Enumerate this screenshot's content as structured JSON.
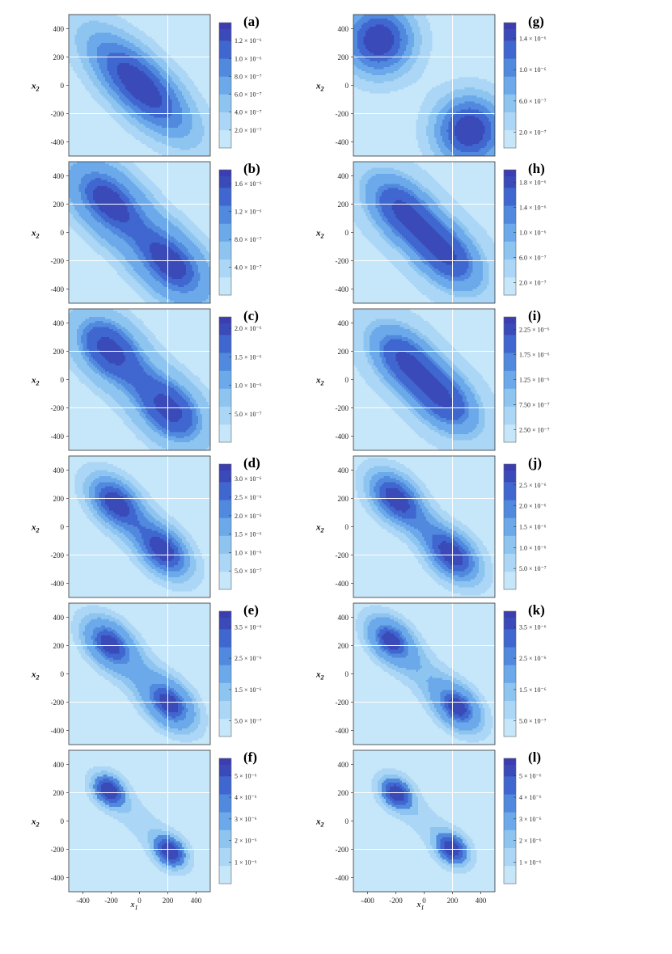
{
  "figure": {
    "x_axis_label": "x",
    "x_axis_label_sub": "1",
    "y_axis_label": "x",
    "y_axis_label_sub": "2"
  },
  "colors": {
    "levels": [
      "#c6e6f9",
      "#acd6f5",
      "#8ec5f0",
      "#6ca9ea",
      "#5089dd",
      "#3f67cf",
      "#3a4ab8"
    ],
    "colorbar_top": "#3b3db0",
    "gridline": "#ffffff",
    "contour_line": "#2d3a66",
    "frame": "#333333"
  },
  "chart_data": [
    {
      "type": "contour",
      "label": "(a)",
      "column": "left",
      "row": 0,
      "xlim": [
        -500,
        500
      ],
      "ylim": [
        -500,
        500
      ],
      "x_ticks": [
        "-400",
        "-200",
        "0",
        "200",
        "400"
      ],
      "y_ticks": [
        "400",
        "200",
        "0",
        "-200",
        "-400"
      ],
      "colorbar": {
        "max": 1.4e-06,
        "ticks": [
          {
            "value": 1.2e-06,
            "label": "1.2 × 10⁻⁶"
          },
          {
            "value": 1e-06,
            "label": "1.0 × 10⁻⁶"
          },
          {
            "value": 8e-07,
            "label": "8.0 × 10⁻⁷"
          },
          {
            "value": 6e-07,
            "label": "6.0 × 10⁻⁷"
          },
          {
            "value": 4e-07,
            "label": "4.0 × 10⁻⁷"
          },
          {
            "value": 2e-07,
            "label": "2.0 × 10⁻⁷"
          }
        ]
      },
      "peaks": [
        {
          "x": -60,
          "y": 60,
          "sx": 280,
          "sy": 280,
          "rho": -0.7,
          "amp": 0.75
        },
        {
          "x": 60,
          "y": -60,
          "sx": 280,
          "sy": 280,
          "rho": -0.7,
          "amp": 0.75
        }
      ],
      "levels": 7
    },
    {
      "type": "contour",
      "label": "(b)",
      "column": "left",
      "row": 1,
      "xlim": [
        -500,
        500
      ],
      "ylim": [
        -500,
        500
      ],
      "x_ticks": [
        "-400",
        "-200",
        "0",
        "200",
        "400"
      ],
      "y_ticks": [
        "400",
        "200",
        "0",
        "-200",
        "-400"
      ],
      "colorbar": {
        "max": 1.8e-06,
        "ticks": [
          {
            "value": 1.6e-06,
            "label": "1.6 × 10⁻⁶"
          },
          {
            "value": 1.2e-06,
            "label": "1.2 × 10⁻⁶"
          },
          {
            "value": 8e-07,
            "label": "8.0 × 10⁻⁷"
          },
          {
            "value": 4e-07,
            "label": "4.0 × 10⁻⁷"
          }
        ]
      },
      "peaks": [
        {
          "x": -250,
          "y": 250,
          "sx": 190,
          "sy": 190,
          "rho": -0.35,
          "amp": 0.62
        },
        {
          "x": 250,
          "y": -250,
          "sx": 190,
          "sy": 190,
          "rho": -0.35,
          "amp": 0.62
        },
        {
          "x": 0,
          "y": 0,
          "sx": 330,
          "sy": 330,
          "rho": -0.75,
          "amp": 0.45
        }
      ],
      "levels": 8
    },
    {
      "type": "contour",
      "label": "(c)",
      "column": "left",
      "row": 2,
      "xlim": [
        -500,
        500
      ],
      "ylim": [
        -500,
        500
      ],
      "x_ticks": [
        "-400",
        "-200",
        "0",
        "200",
        "400"
      ],
      "y_ticks": [
        "400",
        "200",
        "0",
        "-200",
        "-400"
      ],
      "colorbar": {
        "max": 2.2e-06,
        "ticks": [
          {
            "value": 2e-06,
            "label": "2.0 × 10⁻⁶"
          },
          {
            "value": 1.5e-06,
            "label": "1.5 × 10⁻⁶"
          },
          {
            "value": 1e-06,
            "label": "1.0 × 10⁻⁶"
          },
          {
            "value": 5e-07,
            "label": "5.0 × 10⁻⁷"
          }
        ]
      },
      "peaks": [
        {
          "x": -230,
          "y": 230,
          "sx": 170,
          "sy": 170,
          "rho": -0.3,
          "amp": 0.7
        },
        {
          "x": 230,
          "y": -230,
          "sx": 170,
          "sy": 170,
          "rho": -0.3,
          "amp": 0.7
        },
        {
          "x": 0,
          "y": 0,
          "sx": 300,
          "sy": 300,
          "rho": -0.75,
          "amp": 0.4
        }
      ],
      "levels": 9
    },
    {
      "type": "contour",
      "label": "(d)",
      "column": "left",
      "row": 3,
      "xlim": [
        -500,
        500
      ],
      "ylim": [
        -500,
        500
      ],
      "x_ticks": [
        "-400",
        "-200",
        "0",
        "200",
        "400"
      ],
      "y_ticks": [
        "400",
        "200",
        "0",
        "-200",
        "-400"
      ],
      "colorbar": {
        "max": 3.4e-06,
        "ticks": [
          {
            "value": 3e-06,
            "label": "3.0 × 10⁻⁶"
          },
          {
            "value": 2.5e-06,
            "label": "2.5 × 10⁻⁶"
          },
          {
            "value": 2e-06,
            "label": "2.0 × 10⁻⁶"
          },
          {
            "value": 1.5e-06,
            "label": "1.5 × 10⁻⁶"
          },
          {
            "value": 1e-06,
            "label": "1.0 × 10⁻⁶"
          },
          {
            "value": 5e-07,
            "label": "5.0 × 10⁻⁷"
          }
        ]
      },
      "peaks": [
        {
          "x": -180,
          "y": 180,
          "sx": 130,
          "sy": 130,
          "rho": -0.3,
          "amp": 0.75
        },
        {
          "x": 180,
          "y": -180,
          "sx": 130,
          "sy": 130,
          "rho": -0.3,
          "amp": 0.75
        },
        {
          "x": 0,
          "y": 0,
          "sx": 260,
          "sy": 260,
          "rho": -0.8,
          "amp": 0.45
        }
      ],
      "levels": 7
    },
    {
      "type": "contour",
      "label": "(e)",
      "column": "left",
      "row": 4,
      "xlim": [
        -500,
        500
      ],
      "ylim": [
        -500,
        500
      ],
      "x_ticks": [
        "-400",
        "-200",
        "0",
        "200",
        "400"
      ],
      "y_ticks": [
        "400",
        "200",
        "0",
        "-200",
        "-400"
      ],
      "colorbar": {
        "max": 4e-06,
        "ticks": [
          {
            "value": 3.5e-06,
            "label": "3.5 × 10⁻⁶"
          },
          {
            "value": 2.5e-06,
            "label": "2.5 × 10⁻⁶"
          },
          {
            "value": 1.5e-06,
            "label": "1.5 × 10⁻⁶"
          },
          {
            "value": 5e-07,
            "label": "5.0 × 10⁻⁷"
          }
        ]
      },
      "peaks": [
        {
          "x": -220,
          "y": 220,
          "sx": 120,
          "sy": 120,
          "rho": -0.3,
          "amp": 0.8
        },
        {
          "x": 220,
          "y": -220,
          "sx": 120,
          "sy": 120,
          "rho": -0.3,
          "amp": 0.8
        },
        {
          "x": 0,
          "y": 0,
          "sx": 260,
          "sy": 260,
          "rho": -0.82,
          "amp": 0.4
        }
      ],
      "levels": 8
    },
    {
      "type": "contour",
      "label": "(f)",
      "column": "left",
      "row": 5,
      "xlim": [
        -500,
        500
      ],
      "ylim": [
        -500,
        500
      ],
      "x_ticks": [
        "-400",
        "-200",
        "0",
        "200",
        "400"
      ],
      "y_ticks": [
        "400",
        "200",
        "0",
        "-200",
        "-400"
      ],
      "colorbar": {
        "max": 5.8e-06,
        "ticks": [
          {
            "value": 5e-06,
            "label": "5 × 10⁻⁶"
          },
          {
            "value": 4e-06,
            "label": "4 × 10⁻⁶"
          },
          {
            "value": 3e-06,
            "label": "3 × 10⁻⁶"
          },
          {
            "value": 2e-06,
            "label": "2 × 10⁻⁶"
          },
          {
            "value": 1e-06,
            "label": "1 × 10⁻⁶"
          }
        ]
      },
      "peaks": [
        {
          "x": -220,
          "y": 220,
          "sx": 85,
          "sy": 85,
          "rho": -0.2,
          "amp": 0.85
        },
        {
          "x": 220,
          "y": -220,
          "sx": 85,
          "sy": 85,
          "rho": -0.2,
          "amp": 0.85
        },
        {
          "x": 0,
          "y": 0,
          "sx": 230,
          "sy": 230,
          "rho": -0.85,
          "amp": 0.3
        }
      ],
      "levels": 6
    },
    {
      "type": "contour",
      "label": "(g)",
      "column": "right",
      "row": 0,
      "xlim": [
        -500,
        500
      ],
      "ylim": [
        -500,
        500
      ],
      "x_ticks": [
        "-400",
        "-200",
        "0",
        "200",
        "400"
      ],
      "y_ticks": [
        "400",
        "200",
        "0",
        "-200",
        "-400"
      ],
      "colorbar": {
        "max": 1.6e-06,
        "ticks": [
          {
            "value": 1.4e-06,
            "label": "1.4 × 10⁻⁶"
          },
          {
            "value": 1e-06,
            "label": "1.0 × 10⁻⁶"
          },
          {
            "value": 6e-07,
            "label": "6.0 × 10⁻⁷"
          },
          {
            "value": 2e-07,
            "label": "2.0 × 10⁻⁷"
          }
        ]
      },
      "peaks": [
        {
          "x": -320,
          "y": 320,
          "sx": 190,
          "sy": 190,
          "rho": 0.0,
          "amp": 0.9
        },
        {
          "x": 320,
          "y": -320,
          "sx": 190,
          "sy": 190,
          "rho": 0.0,
          "amp": 0.9
        }
      ],
      "levels": 7
    },
    {
      "type": "contour",
      "label": "(h)",
      "column": "right",
      "row": 1,
      "xlim": [
        -500,
        500
      ],
      "ylim": [
        -500,
        500
      ],
      "x_ticks": [
        "-400",
        "-200",
        "0",
        "200",
        "400"
      ],
      "y_ticks": [
        "400",
        "200",
        "0",
        "-200",
        "-400"
      ],
      "colorbar": {
        "max": 2e-06,
        "ticks": [
          {
            "value": 1.8e-06,
            "label": "1.8 × 10⁻⁶"
          },
          {
            "value": 1.4e-06,
            "label": "1.4 × 10⁻⁶"
          },
          {
            "value": 1e-06,
            "label": "1.0 × 10⁻⁶"
          },
          {
            "value": 6e-07,
            "label": "6.0 × 10⁻⁷"
          },
          {
            "value": 2e-07,
            "label": "2.0 × 10⁻⁷"
          }
        ]
      },
      "peaks": [
        {
          "x": -180,
          "y": 180,
          "sx": 180,
          "sy": 180,
          "rho": -0.3,
          "amp": 0.6
        },
        {
          "x": 180,
          "y": -180,
          "sx": 180,
          "sy": 180,
          "rho": -0.3,
          "amp": 0.6
        },
        {
          "x": 0,
          "y": 0,
          "sx": 300,
          "sy": 300,
          "rho": -0.75,
          "amp": 0.55
        }
      ],
      "levels": 10
    },
    {
      "type": "contour",
      "label": "(i)",
      "column": "right",
      "row": 2,
      "xlim": [
        -500,
        500
      ],
      "ylim": [
        -500,
        500
      ],
      "x_ticks": [
        "-400",
        "-200",
        "0",
        "200",
        "400"
      ],
      "y_ticks": [
        "400",
        "200",
        "0",
        "-200",
        "-400"
      ],
      "colorbar": {
        "max": 2.5e-06,
        "ticks": [
          {
            "value": 2.25e-06,
            "label": "2.25 × 10⁻⁶"
          },
          {
            "value": 1.75e-06,
            "label": "1.75 × 10⁻⁶"
          },
          {
            "value": 1.25e-06,
            "label": "1.25 × 10⁻⁶"
          },
          {
            "value": 7.5e-07,
            "label": "7.50 × 10⁻⁷"
          },
          {
            "value": 2.5e-07,
            "label": "2.50 × 10⁻⁷"
          }
        ]
      },
      "peaks": [
        {
          "x": -160,
          "y": 160,
          "sx": 170,
          "sy": 170,
          "rho": -0.3,
          "amp": 0.6
        },
        {
          "x": 160,
          "y": -160,
          "sx": 170,
          "sy": 170,
          "rho": -0.3,
          "amp": 0.6
        },
        {
          "x": 0,
          "y": 0,
          "sx": 300,
          "sy": 300,
          "rho": -0.75,
          "amp": 0.55
        }
      ],
      "levels": 10
    },
    {
      "type": "contour",
      "label": "(j)",
      "column": "right",
      "row": 3,
      "xlim": [
        -500,
        500
      ],
      "ylim": [
        -500,
        500
      ],
      "x_ticks": [
        "-400",
        "-200",
        "0",
        "200",
        "400"
      ],
      "y_ticks": [
        "400",
        "200",
        "0",
        "-200",
        "-400"
      ],
      "colorbar": {
        "max": 3e-06,
        "ticks": [
          {
            "value": 2.5e-06,
            "label": "2.5 × 10⁻⁶"
          },
          {
            "value": 2e-06,
            "label": "2.0 × 10⁻⁶"
          },
          {
            "value": 1.5e-06,
            "label": "1.5 × 10⁻⁶"
          },
          {
            "value": 1e-06,
            "label": "1.0 × 10⁻⁶"
          },
          {
            "value": 5e-07,
            "label": "5.0 × 10⁻⁷"
          }
        ]
      },
      "peaks": [
        {
          "x": -210,
          "y": 210,
          "sx": 140,
          "sy": 140,
          "rho": -0.3,
          "amp": 0.8
        },
        {
          "x": 210,
          "y": -210,
          "sx": 140,
          "sy": 140,
          "rho": -0.3,
          "amp": 0.8
        },
        {
          "x": 0,
          "y": 0,
          "sx": 250,
          "sy": 250,
          "rho": -0.85,
          "amp": 0.4
        }
      ],
      "levels": 7
    },
    {
      "type": "contour",
      "label": "(k)",
      "column": "right",
      "row": 4,
      "xlim": [
        -500,
        500
      ],
      "ylim": [
        -500,
        500
      ],
      "x_ticks": [
        "-400",
        "-200",
        "0",
        "200",
        "400"
      ],
      "y_ticks": [
        "400",
        "200",
        "0",
        "-200",
        "-400"
      ],
      "colorbar": {
        "max": 4e-06,
        "ticks": [
          {
            "value": 3.5e-06,
            "label": "3.5 × 10⁻⁶"
          },
          {
            "value": 2.5e-06,
            "label": "2.5 × 10⁻⁶"
          },
          {
            "value": 1.5e-06,
            "label": "1.5 × 10⁻⁶"
          },
          {
            "value": 5e-07,
            "label": "5.0 × 10⁻⁷"
          }
        ]
      },
      "peaks": [
        {
          "x": -240,
          "y": 240,
          "sx": 110,
          "sy": 110,
          "rho": -0.3,
          "amp": 0.85
        },
        {
          "x": 240,
          "y": -240,
          "sx": 110,
          "sy": 110,
          "rho": -0.3,
          "amp": 0.85
        },
        {
          "x": 0,
          "y": 0,
          "sx": 270,
          "sy": 270,
          "rho": -0.85,
          "amp": 0.35
        }
      ],
      "levels": 8
    },
    {
      "type": "contour",
      "label": "(l)",
      "column": "right",
      "row": 5,
      "xlim": [
        -500,
        500
      ],
      "ylim": [
        -500,
        500
      ],
      "x_ticks": [
        "-400",
        "-200",
        "0",
        "200",
        "400"
      ],
      "y_ticks": [
        "400",
        "200",
        "0",
        "-200",
        "-400"
      ],
      "colorbar": {
        "max": 5.8e-06,
        "ticks": [
          {
            "value": 5e-06,
            "label": "5 × 10⁻⁶"
          },
          {
            "value": 4e-06,
            "label": "4 × 10⁻⁶"
          },
          {
            "value": 3e-06,
            "label": "3 × 10⁻⁶"
          },
          {
            "value": 2e-06,
            "label": "2 × 10⁻⁶"
          },
          {
            "value": 1e-06,
            "label": "1 × 10⁻⁶"
          }
        ]
      },
      "peaks": [
        {
          "x": -200,
          "y": 200,
          "sx": 85,
          "sy": 85,
          "rho": -0.2,
          "amp": 0.85
        },
        {
          "x": 200,
          "y": -200,
          "sx": 85,
          "sy": 85,
          "rho": -0.2,
          "amp": 0.85
        },
        {
          "x": 0,
          "y": 0,
          "sx": 230,
          "sy": 230,
          "rho": -0.85,
          "amp": 0.3
        }
      ],
      "levels": 6
    }
  ]
}
